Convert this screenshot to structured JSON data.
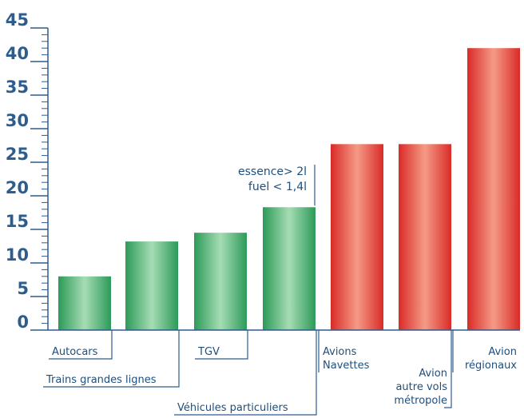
{
  "chart_data": {
    "type": "bar",
    "title": "",
    "xlabel": "",
    "ylabel": "",
    "ylim": [
      0,
      45
    ],
    "yticks": [
      "0",
      "5",
      "10",
      "15",
      "20",
      "25",
      "30",
      "35",
      "40",
      "45"
    ],
    "categories": [
      "Autocars",
      "Trains grandes lignes",
      "TGV",
      "Véhicules  particuliers",
      "Avions Navettes",
      "Avion autre vols métropole",
      "Avion régionaux"
    ],
    "category_lines": [
      [
        "Autocars"
      ],
      [
        "Trains grandes lignes"
      ],
      [
        "TGV"
      ],
      [
        "Véhicules  particuliers"
      ],
      [
        "Avions",
        "Navettes"
      ],
      [
        "Avion",
        "autre vols",
        "métropole"
      ],
      [
        "Avion",
        "régionaux"
      ]
    ],
    "values": [
      8,
      13.2,
      14.5,
      18.3,
      27.7,
      27.7,
      42
    ],
    "bar_colors": [
      "green",
      "green",
      "green",
      "green",
      "red",
      "red",
      "red"
    ],
    "colors": {
      "green": "#2c9a58",
      "green_light": "#a6dcb4",
      "red": "#d92b27",
      "red_light": "#f59a86",
      "axis": "#2d5c8f",
      "text": "#1e4f7d"
    },
    "annotation": {
      "lines": [
        "essence> 2l",
        "fuel < 1,4l"
      ],
      "category": "Véhicules  particuliers"
    },
    "grid": false,
    "legend": "none"
  }
}
